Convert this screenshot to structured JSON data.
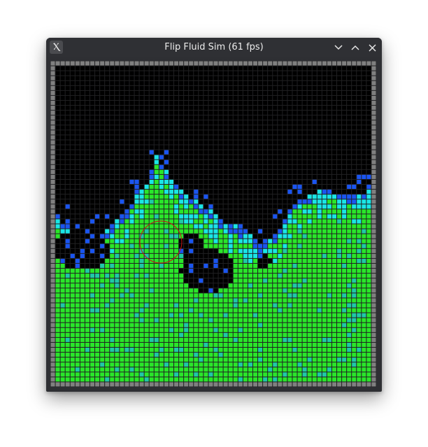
{
  "window": {
    "title": "Flip Fluid Sim (61 fps)",
    "app_icon_glyph": "Ⲭ"
  },
  "titlebar_buttons": [
    {
      "name": "minimize-button",
      "icon": "chevron-down-icon"
    },
    {
      "name": "maximize-button",
      "icon": "chevron-up-icon"
    },
    {
      "name": "close-button",
      "icon": "close-icon"
    }
  ],
  "colors": {
    "wall": "#808080",
    "empty": "#000000",
    "fluid": "#2ae62a",
    "fluid_alt": "#1fc9a8",
    "cyan": "#19e6e6",
    "blue": "#1a55f0",
    "obstacle": "#cc1111"
  }
}
